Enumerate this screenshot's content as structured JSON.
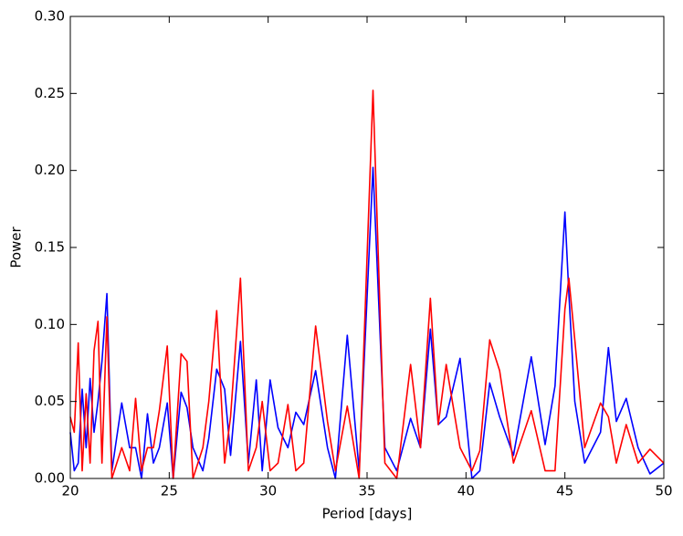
{
  "chart_data": {
    "type": "line",
    "xlabel": "Period [days]",
    "ylabel": "Power",
    "x": [
      20,
      20.2,
      20.4,
      20.6,
      20.8,
      21.0,
      21.2,
      21.4,
      21.6,
      21.85,
      22.1,
      22.6,
      23.0,
      23.3,
      23.6,
      23.9,
      24.2,
      24.5,
      24.9,
      25.2,
      25.6,
      25.9,
      26.2,
      26.7,
      27.0,
      27.4,
      27.8,
      28.1,
      28.6,
      29.0,
      29.4,
      29.7,
      30.1,
      30.5,
      31.0,
      31.4,
      31.8,
      32.4,
      33.0,
      33.4,
      34.0,
      34.6,
      35.3,
      35.9,
      36.5,
      37.2,
      37.7,
      38.2,
      38.6,
      39.0,
      39.7,
      40.3,
      40.7,
      41.2,
      41.7,
      42.4,
      43.3,
      44.0,
      44.5,
      45.0,
      45.2,
      45.5,
      46.0,
      46.8,
      47.2,
      47.6,
      48.1,
      48.7,
      49.3,
      50
    ],
    "series": [
      {
        "color": "#0000ff",
        "values": [
          0.03,
          0.005,
          0.01,
          0.058,
          0.02,
          0.065,
          0.03,
          0.05,
          0.076,
          0.12,
          0.005,
          0.049,
          0.02,
          0.02,
          0.0,
          0.042,
          0.01,
          0.02,
          0.049,
          0.0,
          0.056,
          0.046,
          0.02,
          0.005,
          0.026,
          0.071,
          0.058,
          0.015,
          0.089,
          0.01,
          0.064,
          0.005,
          0.064,
          0.033,
          0.02,
          0.043,
          0.035,
          0.07,
          0.02,
          0.0,
          0.093,
          0.005,
          0.202,
          0.02,
          0.005,
          0.039,
          0.02,
          0.097,
          0.035,
          0.04,
          0.078,
          0.0,
          0.005,
          0.062,
          0.04,
          0.015,
          0.079,
          0.022,
          0.06,
          0.173,
          0.12,
          0.05,
          0.01,
          0.03,
          0.085,
          0.037,
          0.052,
          0.02,
          0.003,
          0.01
        ]
      },
      {
        "color": "#ff0000",
        "values": [
          0.04,
          0.03,
          0.088,
          0.005,
          0.055,
          0.01,
          0.083,
          0.102,
          0.01,
          0.105,
          0.0,
          0.02,
          0.005,
          0.052,
          0.005,
          0.02,
          0.02,
          0.044,
          0.086,
          0.0,
          0.081,
          0.076,
          0.0,
          0.02,
          0.05,
          0.109,
          0.01,
          0.04,
          0.13,
          0.005,
          0.02,
          0.05,
          0.005,
          0.01,
          0.048,
          0.005,
          0.01,
          0.099,
          0.037,
          0.005,
          0.047,
          0.0,
          0.252,
          0.01,
          0.0,
          0.074,
          0.02,
          0.117,
          0.035,
          0.074,
          0.02,
          0.005,
          0.018,
          0.09,
          0.07,
          0.01,
          0.044,
          0.005,
          0.005,
          0.11,
          0.13,
          0.09,
          0.02,
          0.049,
          0.04,
          0.01,
          0.035,
          0.01,
          0.019,
          0.01
        ]
      }
    ],
    "xlim": [
      20,
      50
    ],
    "xticks": [
      20,
      25,
      30,
      35,
      40,
      45,
      50
    ],
    "ylim": [
      0,
      0.3
    ],
    "yticks": [
      {
        "value": 0,
        "label": "0.00"
      },
      {
        "value": 0.05,
        "label": "0.05"
      },
      {
        "value": 0.1,
        "label": "0.10"
      },
      {
        "value": 0.15,
        "label": "0.15"
      },
      {
        "value": 0.2,
        "label": "0.20"
      },
      {
        "value": 0.25,
        "label": "0.25"
      },
      {
        "value": 0.3,
        "label": "0.30"
      }
    ]
  }
}
